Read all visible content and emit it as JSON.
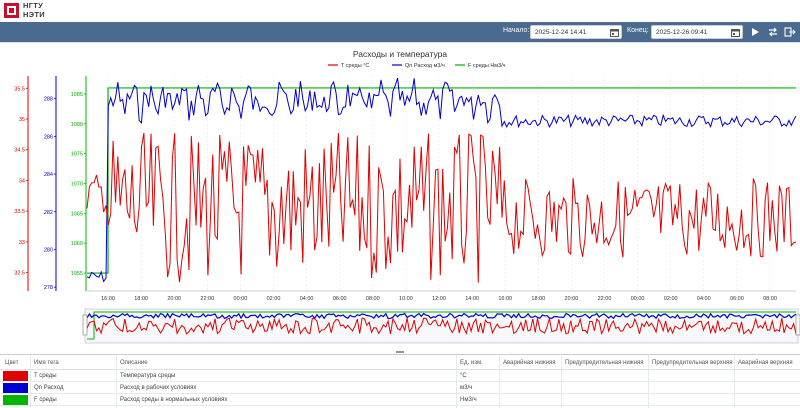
{
  "logo": {
    "line1": "НГТУ",
    "line2": "НЭТИ"
  },
  "toolbar": {
    "start_label": "Начало:",
    "start_value": "2025-12-24 14:41",
    "end_label": "Конец:",
    "end_value": "2025-12-26 09:41",
    "buttons": [
      "play-icon",
      "swap-icon",
      "export-icon"
    ]
  },
  "colors": {
    "toolbar": "#4b6a8f",
    "t": "#e00000",
    "qn": "#0000d0",
    "f": "#00b400"
  },
  "chart_data": {
    "type": "line",
    "title": "Расходы и температура",
    "legend": [
      "T среды °C",
      "Qn Расход м3/ч",
      "F среды Нм3/ч"
    ],
    "x_ticks": [
      "16:00",
      "18:00",
      "20:00",
      "22:00",
      "00:00",
      "02:00",
      "04:00",
      "06:00",
      "08:00",
      "10:00",
      "12:00",
      "14:00",
      "16:00",
      "18:00",
      "20:00",
      "22:00",
      "00:00",
      "02:00",
      "04:00",
      "06:00",
      "08:00"
    ],
    "axes": {
      "t": {
        "ticks": [
          "35.5",
          "35",
          "34.5",
          "34",
          "33.5",
          "33",
          "32.5"
        ],
        "range": [
          32.2,
          35.7
        ]
      },
      "qn": {
        "ticks": [
          "288",
          "286",
          "284",
          "282",
          "280",
          "278"
        ],
        "range": [
          277.8,
          289.2
        ]
      },
      "f": {
        "ticks": [
          "1085",
          "1080",
          "1075",
          "1070",
          "1065",
          "1060",
          "1055"
        ],
        "range": [
          1052,
          1088
        ]
      }
    },
    "series": [
      {
        "name": "T среды °C",
        "unit": "°C"
      },
      {
        "name": "Qn Расход м3/ч",
        "unit": "м3/ч"
      },
      {
        "name": "F среды Нм3/ч",
        "unit": "Нм3/ч"
      }
    ],
    "f_step": {
      "before": 1055,
      "after": 1086
    }
  },
  "table": {
    "headers": [
      "Цвет",
      "Имя тега",
      "Описание",
      "Ед. изм.",
      "Аварийная нижняя",
      "Предупредительная нижняя",
      "Предупредительная верхняя",
      "Аварийная верхняя"
    ],
    "rows": [
      {
        "color": "#e00000",
        "tag": "T среды",
        "desc": "Температура среды",
        "unit": "°C"
      },
      {
        "color": "#0000d0",
        "tag": "Qn Расход",
        "desc": "Расход в рабочих условиях",
        "unit": "м3/ч"
      },
      {
        "color": "#00b400",
        "tag": "F среды",
        "desc": "Расход среды в нормальных условиях",
        "unit": "Нм3/ч"
      }
    ]
  }
}
